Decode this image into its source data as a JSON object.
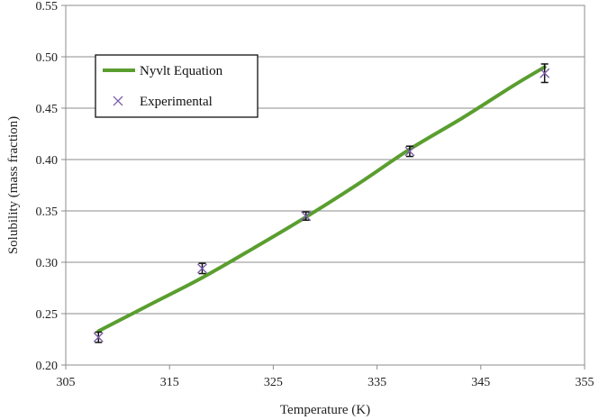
{
  "chart_data": {
    "type": "scatter",
    "title": "",
    "xlabel": "Temperature (K)",
    "ylabel": "Solubility (mass fraction)",
    "xlim": [
      305,
      355
    ],
    "ylim": [
      0.2,
      0.55
    ],
    "xticks": [
      305,
      315,
      325,
      335,
      345,
      355
    ],
    "yticks": [
      0.2,
      0.25,
      0.3,
      0.35,
      0.4,
      0.45,
      0.5,
      0.55
    ],
    "xtick_labels": [
      "305",
      "315",
      "325",
      "335",
      "345",
      "355"
    ],
    "ytick_labels": [
      "0.20",
      "0.25",
      "0.30",
      "0.35",
      "0.40",
      "0.45",
      "0.50",
      "0.55"
    ],
    "grid": "horizontal",
    "legend_position": "top-left",
    "series": [
      {
        "name": "Nyvlt Equation",
        "kind": "line",
        "color": "#5a9e2f",
        "x": [
          308.15,
          313.15,
          318.15,
          323.15,
          328.15,
          333.15,
          338.15,
          343.15,
          348.15,
          351.15
        ],
        "y": [
          0.233,
          0.259,
          0.285,
          0.314,
          0.344,
          0.376,
          0.41,
          0.44,
          0.472,
          0.49
        ]
      },
      {
        "name": "Experimental",
        "kind": "scatter",
        "marker": "x",
        "color": "#7b5ea8",
        "x": [
          308.15,
          318.15,
          328.15,
          338.15,
          351.15
        ],
        "y": [
          0.227,
          0.294,
          0.345,
          0.408,
          0.484
        ],
        "error": [
          0.005,
          0.005,
          0.004,
          0.005,
          0.009
        ]
      }
    ]
  }
}
